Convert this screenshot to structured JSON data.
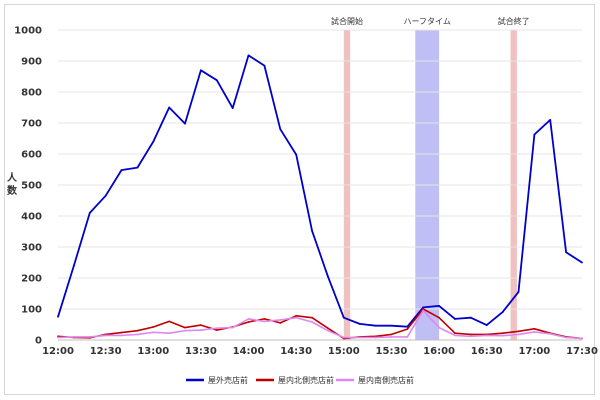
{
  "chart_data": {
    "type": "line",
    "title": "",
    "xlabel": "",
    "ylabel": "人数",
    "ylim": [
      0,
      1000
    ],
    "yticks": [
      "0",
      "100",
      "200",
      "300",
      "400",
      "500",
      "600",
      "700",
      "800",
      "900",
      "1000"
    ],
    "x_tick_labels": [
      "12:00",
      "12:30",
      "13:00",
      "13:30",
      "14:00",
      "14:30",
      "15:00",
      "15:30",
      "16:00",
      "16:30",
      "17:00",
      "17:30"
    ],
    "x_start_minutes": 0,
    "x_end_minutes": 330,
    "x": [
      0,
      10,
      20,
      30,
      40,
      50,
      60,
      70,
      80,
      90,
      100,
      110,
      120,
      130,
      140,
      150,
      160,
      170,
      180,
      190,
      200,
      210,
      220,
      230,
      240,
      250,
      260,
      270,
      280,
      290,
      300,
      310,
      320,
      330
    ],
    "series": [
      {
        "name": "屋外売店前",
        "color": "#0000cc",
        "values": [
          75,
          240,
          410,
          465,
          548,
          556,
          640,
          750,
          698,
          870,
          838,
          748,
          918,
          885,
          680,
          598,
          352,
          205,
          72,
          52,
          46,
          46,
          43,
          105,
          110,
          68,
          72,
          48,
          90,
          155,
          663,
          710,
          283,
          250
        ]
      },
      {
        "name": "屋内北側売店前",
        "color": "#c00000",
        "values": [
          12,
          8,
          7,
          18,
          24,
          30,
          42,
          60,
          40,
          48,
          32,
          42,
          58,
          68,
          55,
          78,
          72,
          38,
          5,
          10,
          12,
          18,
          35,
          100,
          72,
          22,
          18,
          18,
          22,
          28,
          36,
          22,
          10,
          5
        ]
      },
      {
        "name": "屋内南側売店前",
        "color": "#dd88ee",
        "values": [
          8,
          10,
          10,
          15,
          15,
          18,
          25,
          22,
          30,
          32,
          38,
          40,
          68,
          60,
          65,
          72,
          58,
          30,
          8,
          8,
          8,
          10,
          10,
          95,
          40,
          15,
          12,
          15,
          14,
          18,
          26,
          20,
          8,
          5
        ]
      }
    ],
    "annotations": [
      {
        "label": "試合開始",
        "x_start": 180,
        "x_end": 184,
        "color": "#e8a0a0",
        "opacity": 0.65
      },
      {
        "label": "ハーフタイム",
        "x_start": 225,
        "x_end": 240,
        "color": "#8080ee",
        "opacity": 0.5
      },
      {
        "label": "試合終了",
        "x_start": 285,
        "x_end": 289,
        "color": "#e8a0a0",
        "opacity": 0.65
      }
    ],
    "grid": "horizontal",
    "legend_position": "bottom"
  }
}
